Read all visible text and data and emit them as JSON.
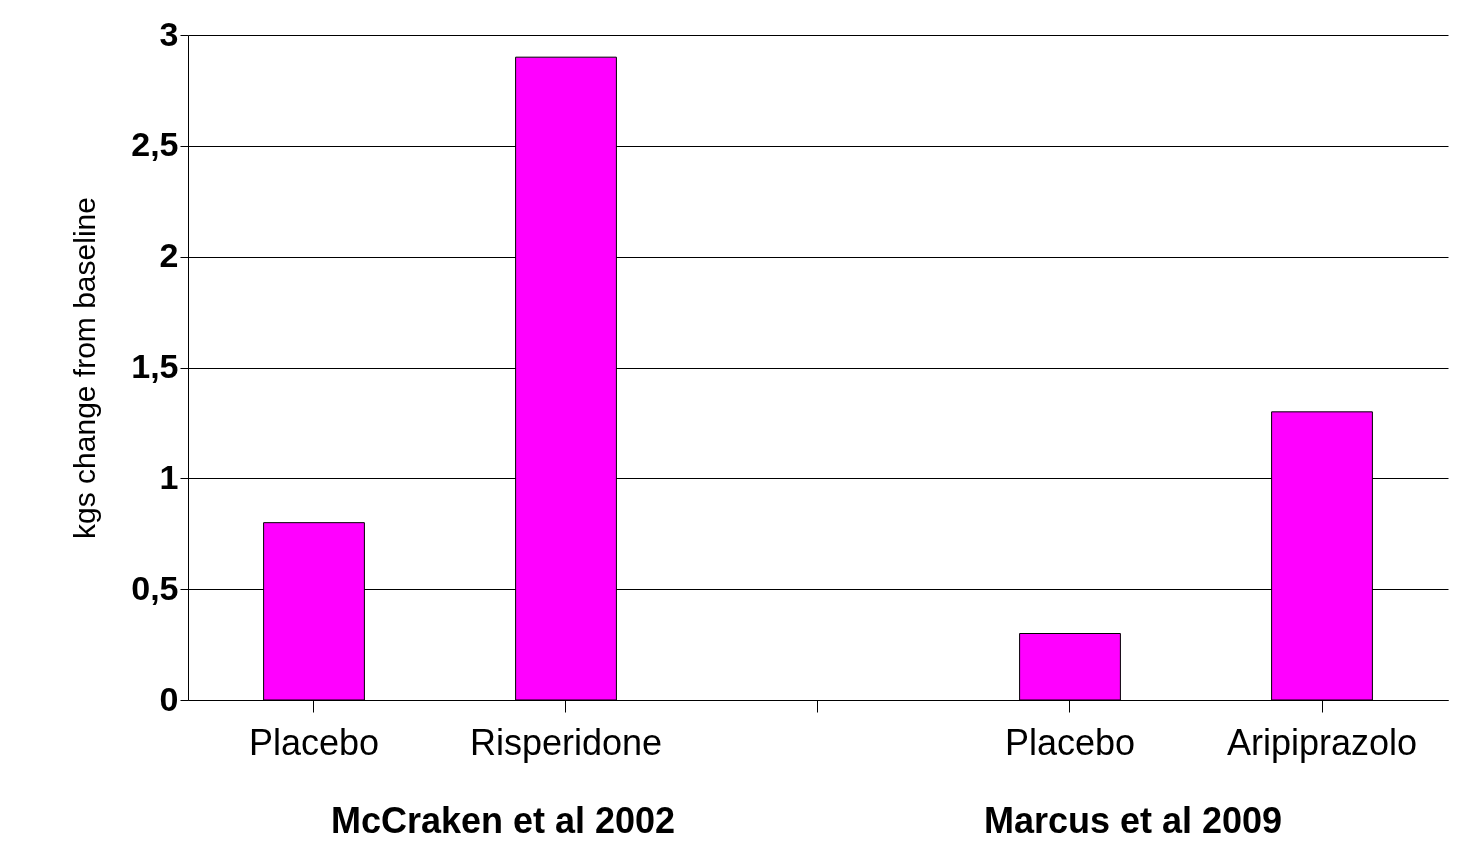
{
  "chart_data": {
    "type": "bar",
    "ylabel": "kgs change from baseline",
    "categories": [
      "Placebo",
      "Risperidone",
      null,
      "Placebo",
      "Aripiprazolo"
    ],
    "values": [
      0.8,
      2.9,
      null,
      0.3,
      1.3
    ],
    "color": "#ff00ff",
    "ylim": [
      0,
      3
    ],
    "yticks": [
      0,
      {
        "value": 0.5,
        "label": "0,5"
      },
      1,
      {
        "value": 1.5,
        "label": "1,5"
      },
      2,
      {
        "value": 2.5,
        "label": "2,5"
      },
      3
    ],
    "grid": "y",
    "annotations": [
      "McCraken et al 2002",
      "Marcus et al 2009"
    ]
  }
}
